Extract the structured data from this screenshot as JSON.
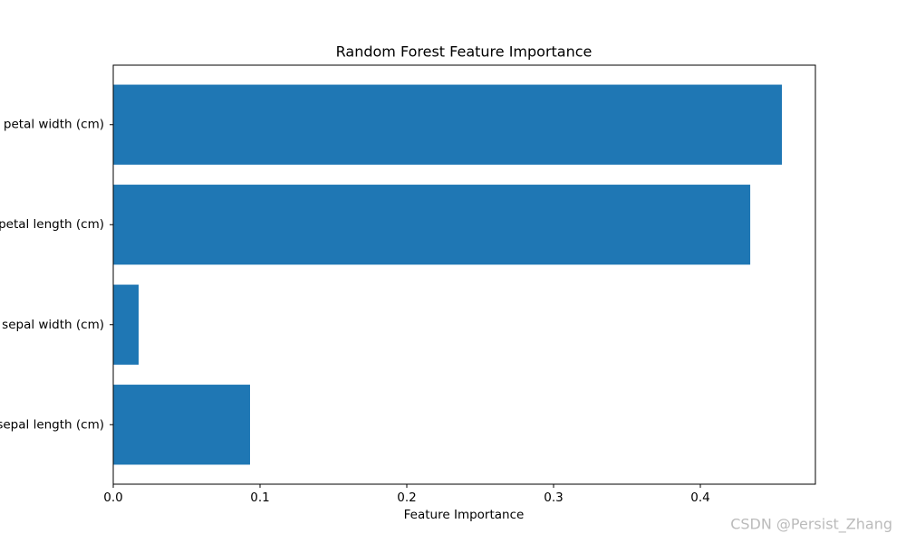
{
  "chart_data": {
    "type": "barh",
    "title": "Random Forest Feature Importance",
    "xlabel": "Feature Importance",
    "categories": [
      "sepal length (cm)",
      "sepal width (cm)",
      "petal length (cm)",
      "petal width (cm)"
    ],
    "values": [
      0.0932,
      0.0173,
      0.434,
      0.4556
    ],
    "color": "#1f77b4",
    "xlim": [
      0,
      0.4784
    ],
    "xticks": [
      {
        "value": 0,
        "label": "0.0"
      },
      0.1,
      0.2,
      0.3,
      0.4
    ],
    "grid": false
  },
  "watermark": "CSDN @Persist_Zhang"
}
